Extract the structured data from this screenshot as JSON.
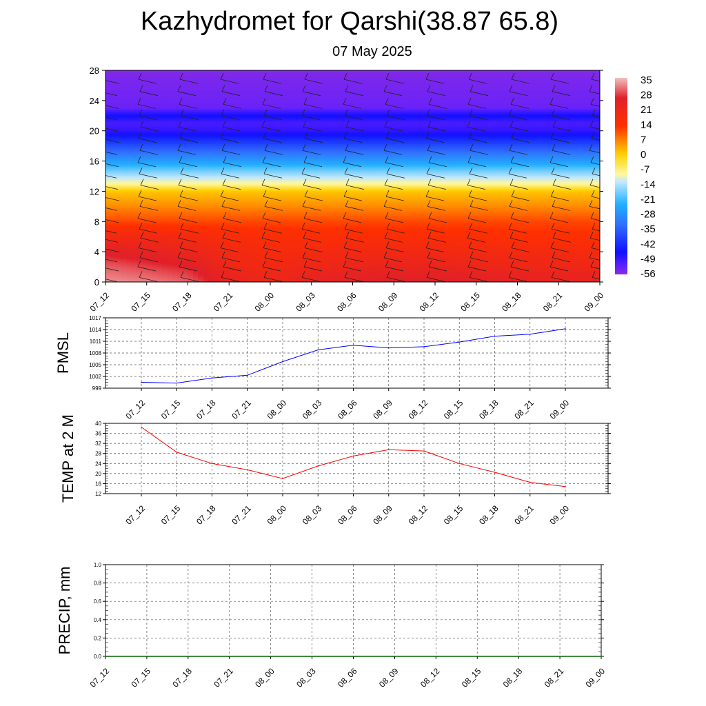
{
  "title": "Kazhydromet for Qarshi(38.87 65.8)",
  "subtitle": "07 May 2025",
  "colors": {
    "pmsl_line": "#0000ff",
    "temp_line": "#ff0000",
    "precip_line": "#006400",
    "grid": "#555555"
  },
  "chart_data": [
    {
      "type": "heatmap",
      "title": "",
      "xlabel": "",
      "ylabel": "",
      "x": [
        "07_12",
        "07_15",
        "07_18",
        "07_21",
        "08_00",
        "08_03",
        "08_06",
        "08_09",
        "08_12",
        "08_15",
        "08_18",
        "08_21",
        "09_00"
      ],
      "y_ticks": [
        0,
        4,
        8,
        12,
        16,
        20,
        24,
        28
      ],
      "ylim": [
        0,
        28
      ],
      "colorbar": {
        "labels": [
          35,
          28,
          21,
          14,
          7,
          0,
          -7,
          -14,
          -21,
          -28,
          -35,
          -42,
          -49,
          -56
        ],
        "range": [
          -60,
          38
        ],
        "stops": [
          {
            "v": 38,
            "c": "#f2c0c0"
          },
          {
            "v": 28,
            "c": "#e0202a"
          },
          {
            "v": 14,
            "c": "#ff3000"
          },
          {
            "v": 7,
            "c": "#ff8000"
          },
          {
            "v": 0,
            "c": "#ffd000"
          },
          {
            "v": -10,
            "c": "#fff8a0"
          },
          {
            "v": -14,
            "c": "#bfe8ff"
          },
          {
            "v": -25,
            "c": "#20b0ff"
          },
          {
            "v": -35,
            "c": "#3070ff"
          },
          {
            "v": -49,
            "c": "#1010ff"
          },
          {
            "v": -56,
            "c": "#6020ff"
          },
          {
            "v": -60,
            "c": "#8a2be2"
          }
        ]
      },
      "temperature_profile": [
        {
          "h": 0,
          "t": [
            35,
            34,
            32,
            25,
            22,
            25,
            27,
            28,
            28,
            27,
            26,
            25,
            25
          ]
        },
        {
          "h": 2,
          "t": [
            32,
            30,
            28,
            22,
            20,
            22,
            23,
            24,
            24,
            23,
            22,
            22,
            22
          ]
        },
        {
          "h": 4,
          "t": [
            27,
            25,
            23,
            20,
            18,
            19,
            20,
            20,
            20,
            19,
            19,
            19,
            18
          ]
        },
        {
          "h": 6,
          "t": [
            20,
            20,
            19,
            17,
            16,
            16,
            16,
            16,
            16,
            16,
            15,
            15,
            15
          ]
        },
        {
          "h": 8,
          "t": [
            12,
            12,
            12,
            12,
            12,
            12,
            12,
            12,
            12,
            12,
            12,
            12,
            12
          ]
        },
        {
          "h": 10,
          "t": [
            6,
            6,
            6,
            6,
            6,
            6,
            6,
            6,
            6,
            6,
            6,
            6,
            6
          ]
        },
        {
          "h": 12,
          "t": [
            1,
            1,
            1,
            1,
            1,
            1,
            1,
            1,
            1,
            1,
            1,
            1,
            1
          ]
        },
        {
          "h": 13,
          "t": [
            -10,
            -10,
            -10,
            -10,
            -10,
            -10,
            -10,
            -10,
            -10,
            -10,
            -10,
            -10,
            -10
          ]
        },
        {
          "h": 14,
          "t": [
            -15,
            -15,
            -15,
            -15,
            -15,
            -15,
            -15,
            -15,
            -15,
            -15,
            -15,
            -15,
            -15
          ]
        },
        {
          "h": 16,
          "t": [
            -28,
            -28,
            -28,
            -28,
            -28,
            -28,
            -28,
            -28,
            -28,
            -28,
            -28,
            -28,
            -28
          ]
        },
        {
          "h": 18,
          "t": [
            -40,
            -40,
            -40,
            -40,
            -40,
            -40,
            -40,
            -40,
            -40,
            -40,
            -40,
            -40,
            -40
          ]
        },
        {
          "h": 20,
          "t": [
            -52,
            -52,
            -52,
            -52,
            -52,
            -52,
            -52,
            -52,
            -52,
            -52,
            -52,
            -52,
            -52
          ]
        },
        {
          "h": 21,
          "t": [
            -54,
            -54,
            -54,
            -54,
            -54,
            -54,
            -54,
            -54,
            -54,
            -54,
            -54,
            -54,
            -54
          ]
        },
        {
          "h": 22,
          "t": [
            -49,
            -49,
            -49,
            -49,
            -49,
            -49,
            -49,
            -49,
            -49,
            -49,
            -49,
            -49,
            -49
          ]
        },
        {
          "h": 23,
          "t": [
            -57,
            -57,
            -57,
            -57,
            -57,
            -57,
            -57,
            -57,
            -57,
            -57,
            -57,
            -57,
            -57
          ]
        },
        {
          "h": 28,
          "t": [
            -59,
            -59,
            -59,
            -59,
            -59,
            -59,
            -59,
            -59,
            -59,
            -59,
            -59,
            -59,
            -59
          ]
        }
      ]
    },
    {
      "type": "line",
      "ylabel": "PMSL",
      "x": [
        "07_12",
        "07_15",
        "07_18",
        "07_21",
        "08_00",
        "08_03",
        "08_06",
        "08_09",
        "08_12",
        "08_15",
        "08_18",
        "08_21",
        "09_00"
      ],
      "y_ticks": [
        999,
        1002,
        1005,
        1008,
        1011,
        1014,
        1017
      ],
      "ylim": [
        999,
        1017
      ],
      "series": [
        {
          "values": [
            1000.5,
            1000.3,
            1001.6,
            1002.3,
            1005.8,
            1008.8,
            1010.0,
            1009.3,
            1009.6,
            1010.8,
            1012.3,
            1012.8,
            1014.2
          ]
        }
      ]
    },
    {
      "type": "line",
      "ylabel": "TEMP at 2 M",
      "x": [
        "07_12",
        "07_15",
        "07_18",
        "07_21",
        "08_00",
        "08_03",
        "08_06",
        "08_09",
        "08_12",
        "08_15",
        "08_18",
        "08_21",
        "09_00"
      ],
      "y_ticks": [
        12,
        16,
        20,
        24,
        28,
        32,
        36,
        40
      ],
      "ylim": [
        12,
        40
      ],
      "series": [
        {
          "values": [
            38.5,
            28.5,
            24.0,
            21.5,
            18.0,
            23.0,
            27.0,
            29.5,
            29.0,
            24.0,
            20.5,
            16.5,
            14.8
          ]
        }
      ]
    },
    {
      "type": "line",
      "ylabel": "PRECIP, mm",
      "x": [
        "07_12",
        "07_15",
        "07_18",
        "07_21",
        "08_00",
        "08_03",
        "08_06",
        "08_09",
        "08_12",
        "08_15",
        "08_18",
        "08_21",
        "09_00"
      ],
      "y_ticks": [
        "0.0",
        "0.2",
        "0.4",
        "0.6",
        "0.8",
        "1.0"
      ],
      "ylim": [
        0,
        1
      ],
      "series": [
        {
          "values": [
            0,
            0,
            0,
            0,
            0,
            0,
            0,
            0,
            0,
            0,
            0,
            0,
            0
          ]
        }
      ]
    }
  ]
}
